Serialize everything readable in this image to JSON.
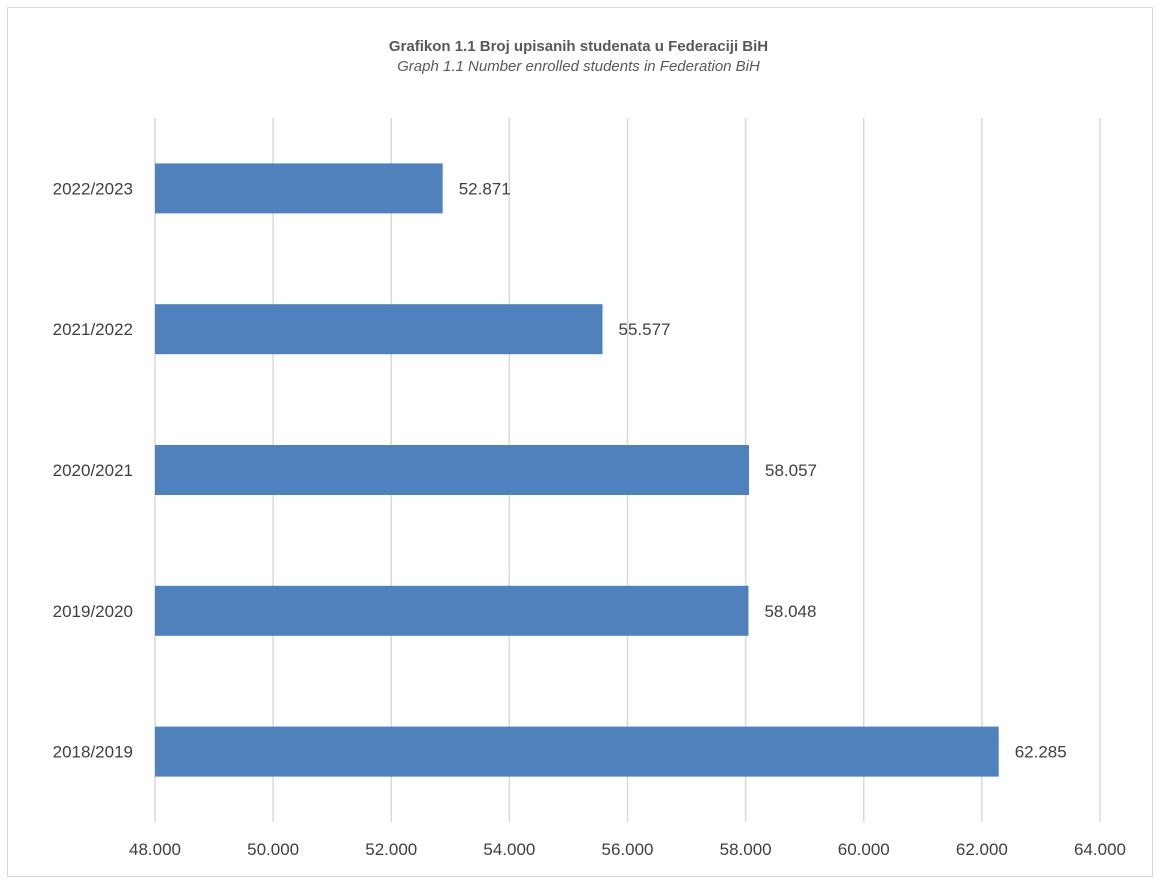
{
  "chart_data": {
    "type": "bar",
    "orientation": "horizontal",
    "title": "Grafikon 1.1 Broj upisanih studenata u Federaciji BiH",
    "subtitle": "Graph 1.1 Number enrolled students in Federation BiH",
    "categories": [
      "2022/2023",
      "2021/2022",
      "2020/2021",
      "2019/2020",
      "2018/2019"
    ],
    "values": [
      52871,
      55577,
      58057,
      58048,
      62285
    ],
    "value_labels": [
      "52.871",
      "55.577",
      "58.057",
      "58.048",
      "62.285"
    ],
    "xlim": [
      48000,
      64000
    ],
    "x_ticks": [
      48000,
      50000,
      52000,
      54000,
      56000,
      58000,
      60000,
      62000,
      64000
    ],
    "x_tick_labels": [
      "48.000",
      "50.000",
      "52.000",
      "54.000",
      "56.000",
      "58.000",
      "60.000",
      "62.000",
      "64.000"
    ],
    "grid": "vertical",
    "legend": "none",
    "bar_color": "#4f81bd"
  }
}
